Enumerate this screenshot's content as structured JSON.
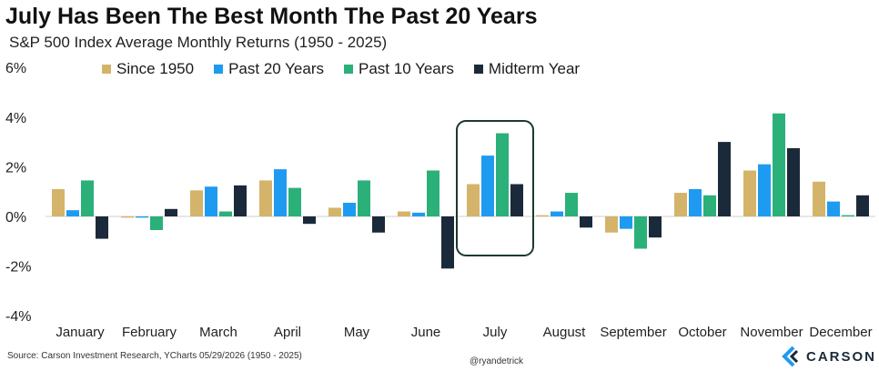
{
  "header": {
    "title": "July Has Been The Best Month The Past 20 Years",
    "subtitle": "S&P 500 Index Average Monthly Returns (1950 - 2025)"
  },
  "footer": {
    "source": "Source: Carson Investment Research, YCharts 05/29/2026 (1950 - 2025)",
    "handle": "@ryandetrick",
    "logo_text": "CARSON"
  },
  "colors": {
    "since_1950": "#d4b46a",
    "past_20": "#1e9bf0",
    "past_10": "#2bb07a",
    "midterm": "#1b2a3a",
    "highlight_box": "#1d3a2a",
    "logo_accent": "#1e9bf0"
  },
  "chart_data": {
    "type": "bar",
    "title": "July Has Been The Best Month The Past 20 Years",
    "subtitle": "S&P 500 Index Average Monthly Returns (1950 - 2025)",
    "categories": [
      "January",
      "February",
      "March",
      "April",
      "May",
      "June",
      "July",
      "August",
      "September",
      "October",
      "November",
      "December"
    ],
    "series": [
      {
        "name": "Since 1950",
        "values": [
          1.1,
          -0.05,
          1.05,
          1.45,
          0.35,
          0.2,
          1.3,
          0.05,
          -0.65,
          0.95,
          1.85,
          1.4
        ]
      },
      {
        "name": "Past 20 Years",
        "values": [
          0.25,
          -0.05,
          1.2,
          1.9,
          0.55,
          0.15,
          2.45,
          0.2,
          -0.5,
          1.1,
          2.1,
          0.6
        ]
      },
      {
        "name": "Past 10 Years",
        "values": [
          1.45,
          -0.55,
          0.2,
          1.15,
          1.45,
          1.85,
          3.35,
          0.95,
          -1.3,
          0.85,
          4.15,
          0.05
        ]
      },
      {
        "name": "Midterm Year",
        "values": [
          -0.9,
          0.3,
          1.25,
          -0.3,
          -0.65,
          -2.1,
          1.3,
          -0.45,
          -0.85,
          3.0,
          2.75,
          0.85
        ]
      }
    ],
    "yticks": [
      "6%",
      "4%",
      "2%",
      "0%",
      "-2%",
      "-4%"
    ],
    "ylim": [
      -4,
      6
    ],
    "y_unit": "%",
    "legend_position": "top",
    "grid": false,
    "highlighted_category": "July"
  }
}
